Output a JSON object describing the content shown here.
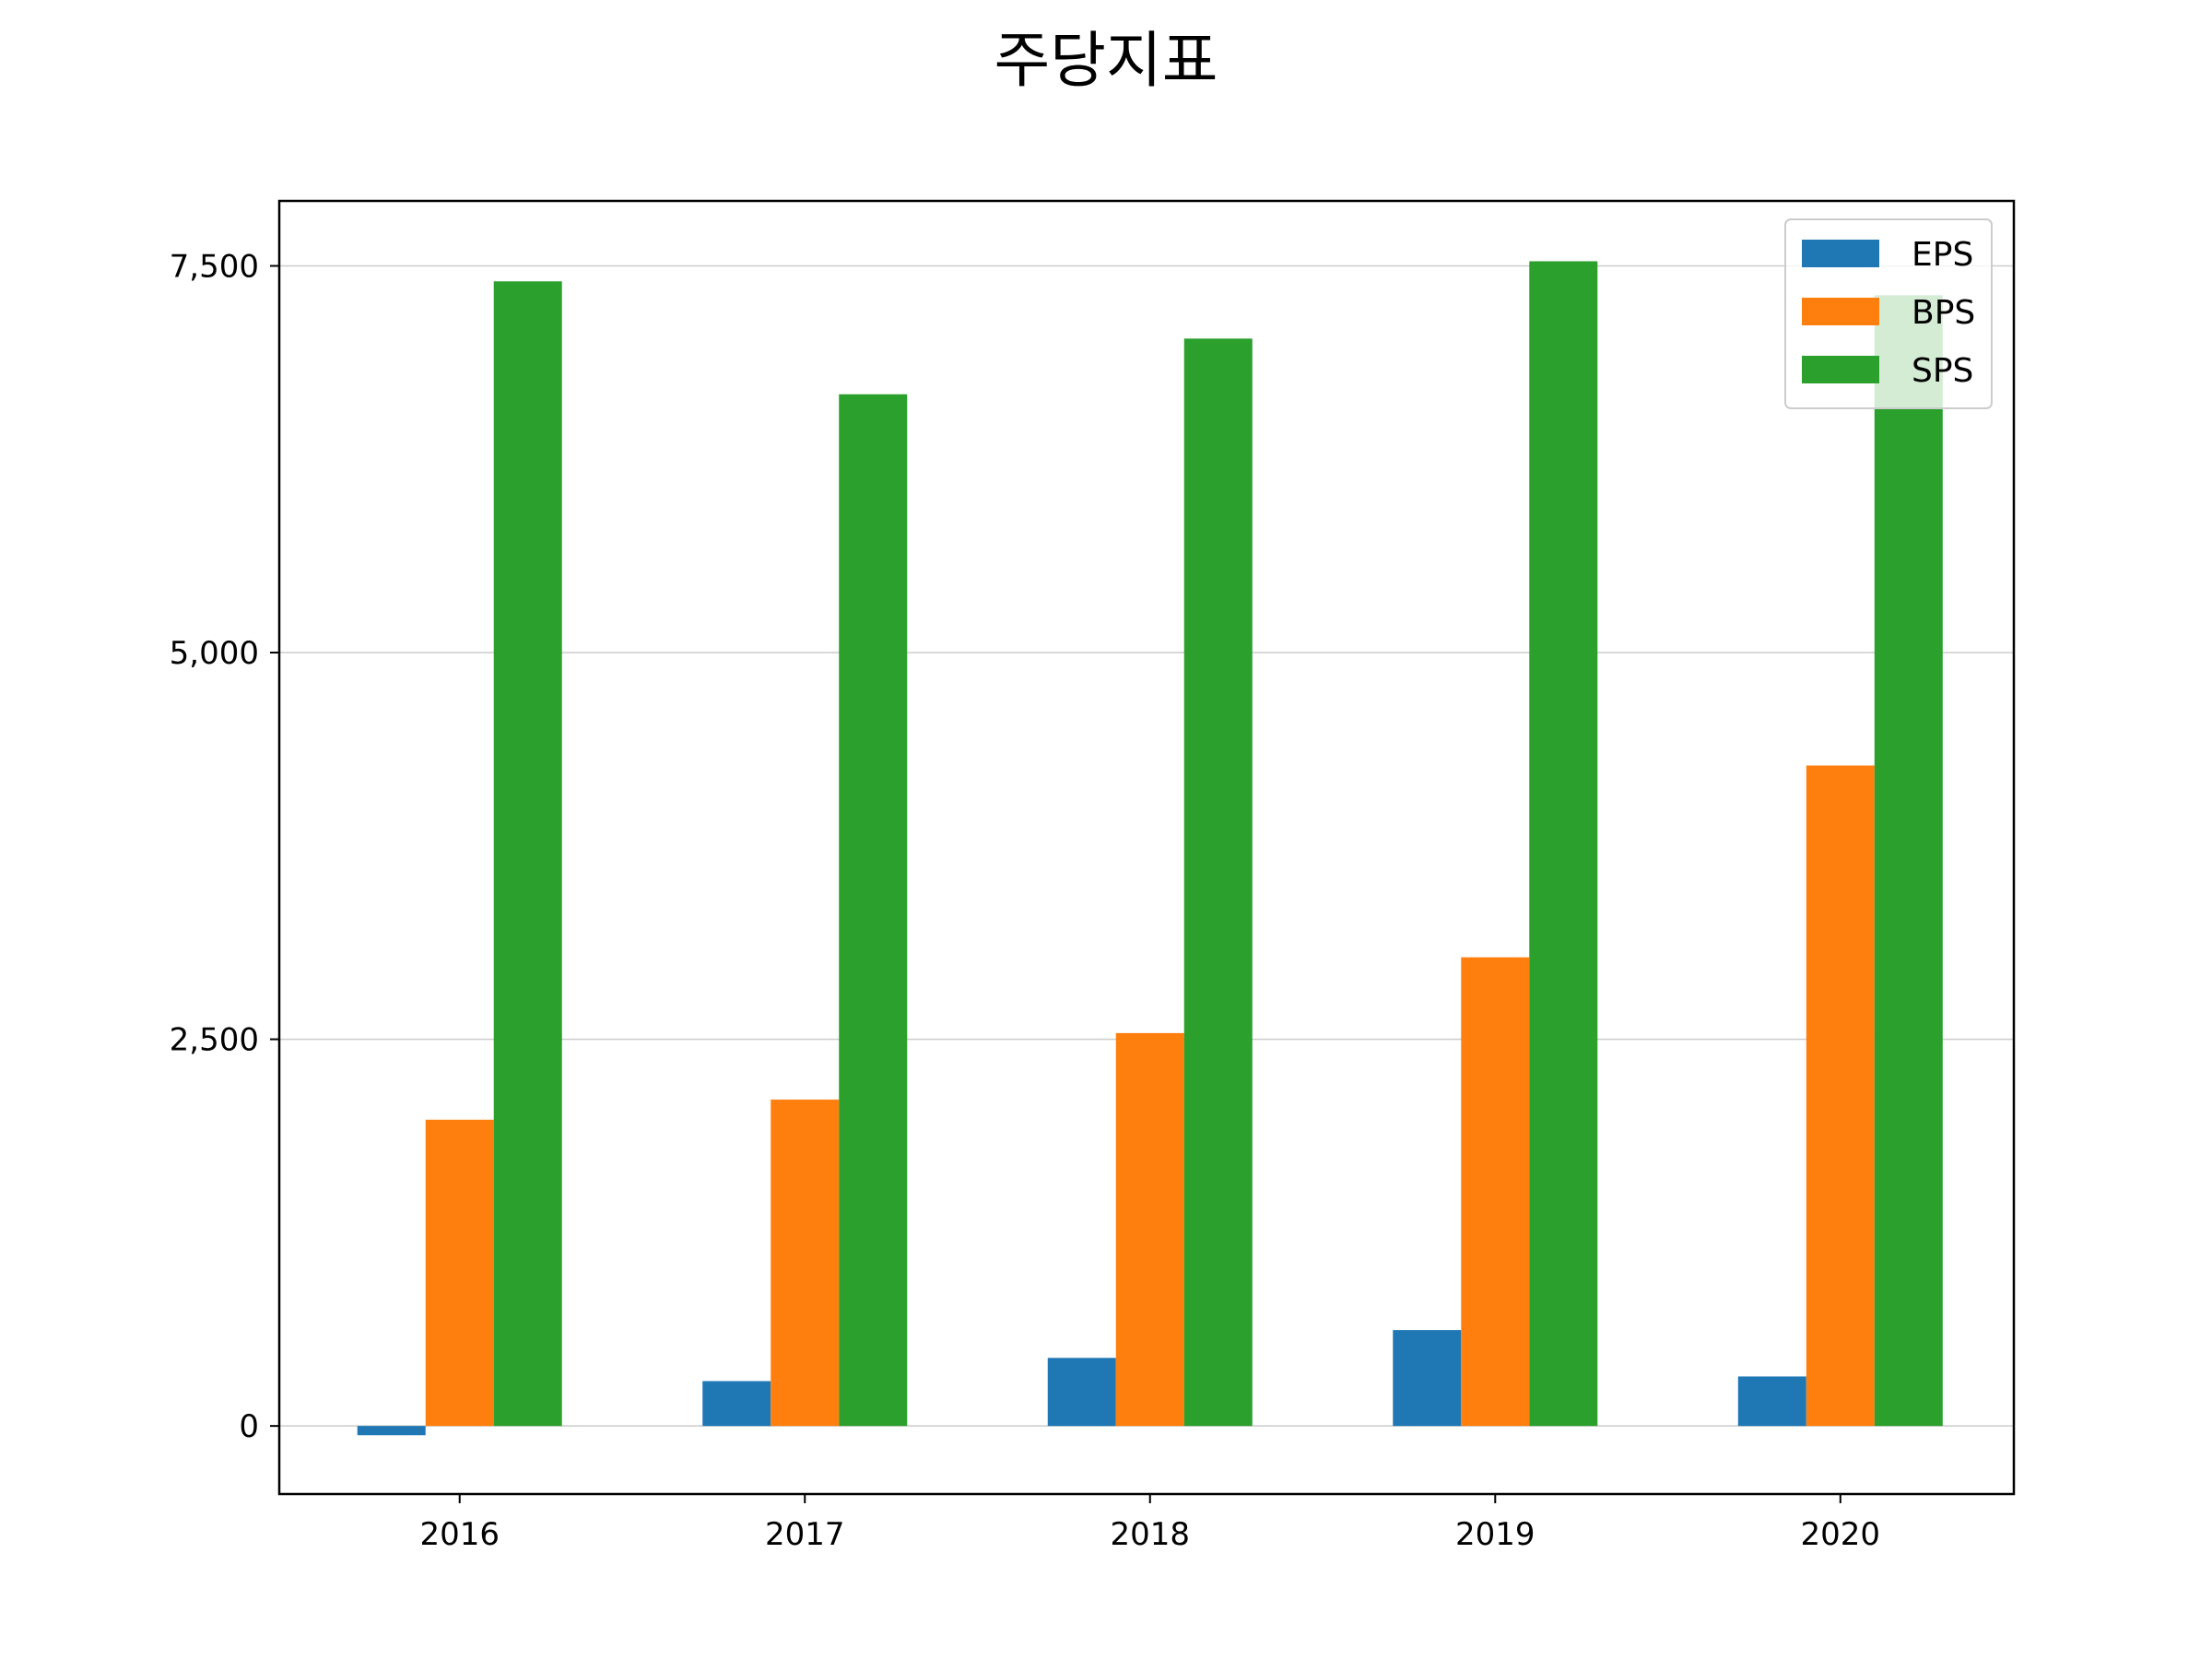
{
  "chart_data": {
    "type": "bar",
    "title": "주당지표",
    "xlabel": "",
    "ylabel": "",
    "categories": [
      "2016",
      "2017",
      "2018",
      "2019",
      "2020"
    ],
    "series": [
      {
        "name": "EPS",
        "color": "#1f77b4",
        "values": [
          -60,
          290,
          440,
          620,
          320
        ]
      },
      {
        "name": "BPS",
        "color": "#ff7f0e",
        "values": [
          1980,
          2110,
          2540,
          3030,
          4270
        ]
      },
      {
        "name": "SPS",
        "color": "#2ca02c",
        "values": [
          7400,
          6670,
          7030,
          7530,
          7310
        ]
      }
    ],
    "ylim": [
      -440,
      7920
    ],
    "yticks": [
      0,
      2500,
      5000,
      7500
    ],
    "ytick_labels": [
      "0",
      "2,500",
      "5,000",
      "7,500"
    ],
    "grid": "horizontal",
    "legend_position": "top-right"
  }
}
